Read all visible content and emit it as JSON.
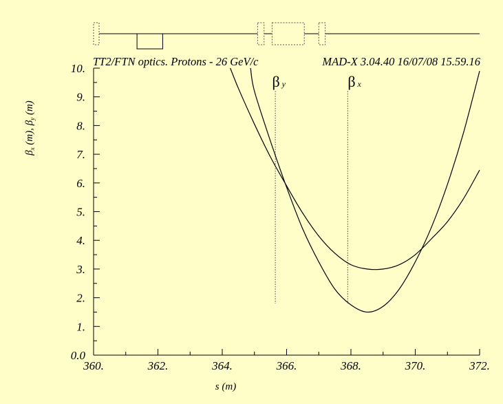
{
  "chart_data": {
    "type": "line",
    "title_left": "TT2/FTN optics. Protons - 26 GeV/c",
    "title_right": "MAD-X 3.04.40  16/07/08 15.59.16",
    "xlabel": "s (m)",
    "ylabel": "βx (m), βy (m)",
    "ylabel_parts": [
      "β",
      "x",
      " (m),  β",
      "y",
      " (m)"
    ],
    "xlim": [
      360,
      372
    ],
    "ylim": [
      0,
      10
    ],
    "x_ticks": [
      360,
      362,
      364,
      366,
      368,
      370,
      372
    ],
    "x_tick_labels": [
      "360.",
      "362.",
      "364.",
      "366.",
      "368.",
      "370.",
      "372."
    ],
    "y_ticks": [
      0,
      1,
      2,
      3,
      4,
      5,
      6,
      7,
      8,
      9,
      10
    ],
    "y_tick_labels": [
      "0.0",
      "1.",
      "2.",
      "3.",
      "4.",
      "5.",
      "6.",
      "7.",
      "8.",
      "9.",
      "10."
    ],
    "grid": false,
    "series": [
      {
        "name": "βx",
        "label_glyph": "β",
        "label_sub": "x",
        "label_at": {
          "x": 367.9,
          "y": 9.55
        },
        "marker_x": 367.9,
        "x": [
          364.25,
          364.5,
          365.0,
          365.5,
          366.0,
          366.5,
          367.0,
          367.5,
          368.0,
          368.5,
          369.0,
          369.5,
          370.0,
          370.5,
          371.0,
          371.5,
          372.0
        ],
        "values": [
          10.0,
          9.3,
          8.05,
          6.9,
          5.9,
          4.95,
          4.15,
          3.55,
          3.15,
          3.0,
          3.0,
          3.15,
          3.5,
          4.05,
          4.65,
          5.45,
          6.45
        ]
      },
      {
        "name": "βy",
        "label_glyph": "β",
        "label_sub": "y",
        "label_at": {
          "x": 365.55,
          "y": 9.55
        },
        "marker_x": 365.65,
        "x": [
          364.88,
          365.0,
          365.5,
          366.0,
          366.5,
          367.0,
          367.5,
          368.0,
          368.5,
          369.0,
          369.5,
          370.0,
          370.5,
          371.0,
          371.5,
          372.0
        ],
        "values": [
          10.0,
          9.2,
          7.45,
          5.85,
          4.4,
          3.25,
          2.3,
          1.75,
          1.5,
          1.7,
          2.3,
          3.25,
          4.45,
          5.95,
          7.75,
          9.9
        ]
      }
    ],
    "element_layout": {
      "baseline_x": [
        360,
        372
      ],
      "elements": [
        {
          "kind": "marker",
          "x": [
            360.0,
            360.12
          ]
        },
        {
          "kind": "quadrupole",
          "x": [
            361.35,
            362.15
          ]
        },
        {
          "kind": "marker",
          "x": [
            365.1,
            365.3
          ]
        },
        {
          "kind": "monitor",
          "x": [
            365.55,
            366.55
          ]
        },
        {
          "kind": "marker",
          "x": [
            367.0,
            367.2
          ]
        }
      ]
    }
  }
}
